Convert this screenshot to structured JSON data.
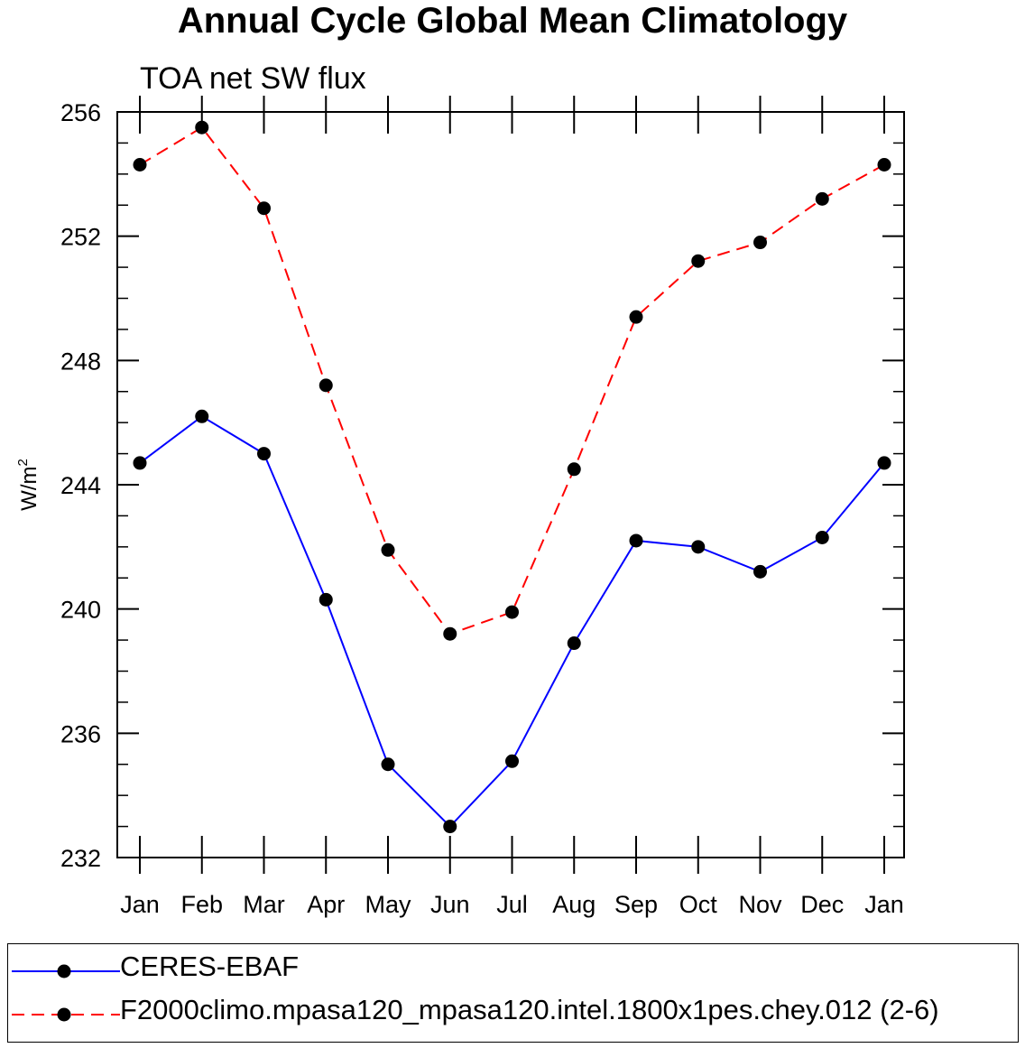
{
  "title": "Annual Cycle Global Mean Climatology",
  "chart_data": {
    "type": "line",
    "title": "Annual Cycle Global Mean Climatology",
    "subtitle": "TOA net SW flux",
    "xlabel": "",
    "ylabel": "W/m",
    "ylabel_superscript": "2",
    "categories": [
      "Jan",
      "Feb",
      "Mar",
      "Apr",
      "May",
      "Jun",
      "Jul",
      "Aug",
      "Sep",
      "Oct",
      "Nov",
      "Dec",
      "Jan"
    ],
    "ylim": [
      232,
      256
    ],
    "yticks": [
      232,
      236,
      240,
      244,
      248,
      252,
      256
    ],
    "y_minor_step": 1,
    "grid": false,
    "legend_position": "bottom",
    "series": [
      {
        "name": "CERES-EBAF",
        "color": "#0000ff",
        "dash": "solid",
        "marker": "filled-circle",
        "values": [
          244.7,
          246.2,
          245.0,
          240.3,
          235.0,
          233.0,
          235.1,
          238.9,
          242.2,
          242.0,
          241.2,
          242.3,
          244.7
        ]
      },
      {
        "name": "F2000climo.mpasa120_mpasa120.intel.1800x1pes.chey.012 (2-6)",
        "color": "#ff0000",
        "dash": "dashed",
        "marker": "filled-circle",
        "values": [
          254.3,
          255.5,
          252.9,
          247.2,
          241.9,
          239.2,
          239.9,
          244.5,
          249.4,
          251.2,
          251.8,
          253.2,
          254.3
        ]
      }
    ]
  }
}
